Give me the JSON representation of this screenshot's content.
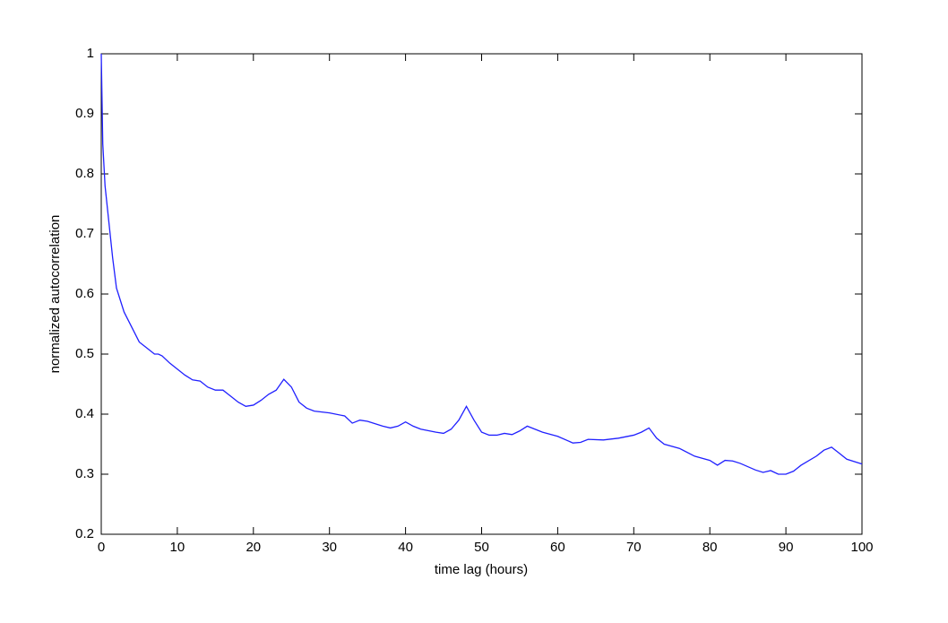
{
  "chart_data": {
    "type": "line",
    "xlabel": "time lag (hours)",
    "ylabel": "normalized  autocorrelation",
    "xlim": [
      0,
      100
    ],
    "ylim": [
      0.2,
      1
    ],
    "xticks": [
      0,
      10,
      20,
      30,
      40,
      50,
      60,
      70,
      80,
      90,
      100
    ],
    "yticks": [
      0.2,
      0.3,
      0.4,
      0.5,
      0.6,
      0.7,
      0.8,
      0.9,
      1
    ],
    "grid": false,
    "series": [
      {
        "color": "#2020ff",
        "x": [
          0,
          0.2,
          0.5,
          1,
          1.5,
          2,
          3,
          4,
          5,
          6,
          7,
          7.5,
          8,
          9,
          10,
          11,
          12,
          13,
          14,
          15,
          16,
          17,
          18,
          19,
          20,
          21,
          22,
          23,
          24,
          25,
          26,
          27,
          28,
          30,
          32,
          33,
          34,
          35,
          37,
          38,
          39,
          40,
          41,
          42,
          44,
          45,
          46,
          47,
          48,
          49,
          50,
          51,
          52,
          53,
          54,
          55,
          56,
          57,
          58,
          60,
          62,
          63,
          64,
          66,
          68,
          70,
          71,
          72,
          73,
          74,
          76,
          78,
          80,
          81,
          82,
          83,
          84,
          86,
          87,
          88,
          89,
          90,
          91,
          92,
          94,
          95,
          96,
          97,
          98,
          100
        ],
        "values": [
          1.0,
          0.85,
          0.78,
          0.72,
          0.66,
          0.61,
          0.57,
          0.545,
          0.52,
          0.51,
          0.5,
          0.5,
          0.497,
          0.485,
          0.475,
          0.465,
          0.457,
          0.455,
          0.445,
          0.44,
          0.44,
          0.43,
          0.42,
          0.413,
          0.415,
          0.423,
          0.433,
          0.44,
          0.458,
          0.445,
          0.42,
          0.41,
          0.405,
          0.402,
          0.397,
          0.385,
          0.39,
          0.388,
          0.38,
          0.377,
          0.38,
          0.387,
          0.38,
          0.375,
          0.37,
          0.368,
          0.375,
          0.39,
          0.413,
          0.39,
          0.37,
          0.365,
          0.365,
          0.368,
          0.366,
          0.372,
          0.38,
          0.375,
          0.37,
          0.363,
          0.352,
          0.353,
          0.358,
          0.357,
          0.36,
          0.365,
          0.37,
          0.377,
          0.36,
          0.35,
          0.343,
          0.33,
          0.323,
          0.315,
          0.323,
          0.322,
          0.318,
          0.307,
          0.303,
          0.306,
          0.3,
          0.3,
          0.305,
          0.315,
          0.33,
          0.34,
          0.345,
          0.335,
          0.325,
          0.317
        ]
      }
    ]
  }
}
